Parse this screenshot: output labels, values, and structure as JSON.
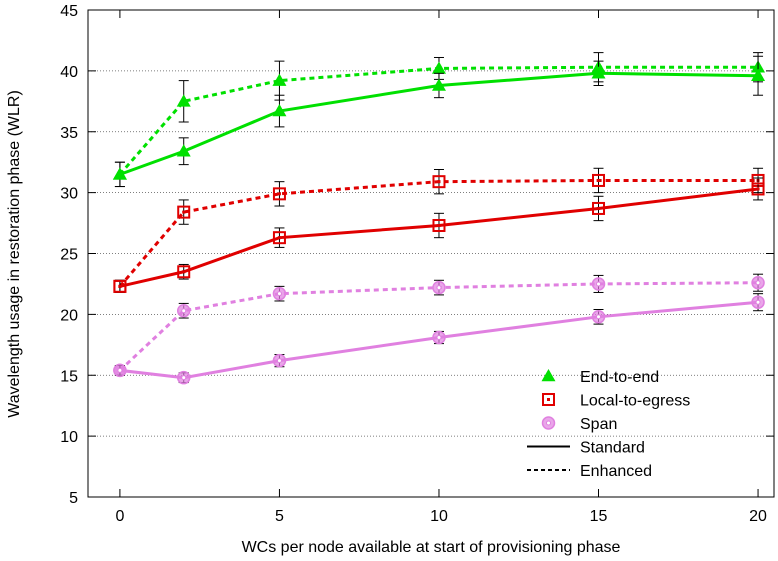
{
  "chart_data": {
    "type": "line",
    "title": "",
    "xlabel": "WCs per node available at start of provisioning phase",
    "ylabel": "Wavelength usage in restoration phase (WLR)",
    "xlim": [
      -1,
      20.5
    ],
    "ylim": [
      5,
      45
    ],
    "x_ticks": [
      0,
      5,
      10,
      15,
      20
    ],
    "y_ticks": [
      5,
      10,
      15,
      20,
      25,
      30,
      35,
      40,
      45
    ],
    "grid": "horizontal dotted",
    "legend_position": "bottom-right",
    "x": [
      0,
      2,
      5,
      10,
      15,
      20
    ],
    "groups": [
      {
        "name": "End-to-end",
        "color": "#00e000",
        "marker": "triangle",
        "standard": [
          31.5,
          33.4,
          36.7,
          38.8,
          39.8,
          39.6
        ],
        "standard_err": [
          1.0,
          1.1,
          1.3,
          1.0,
          1.0,
          1.6
        ],
        "enhanced": [
          31.5,
          37.5,
          39.2,
          40.2,
          40.3,
          40.3
        ],
        "enhanced_err": [
          1.0,
          1.7,
          1.6,
          0.9,
          1.2,
          1.2
        ]
      },
      {
        "name": "Local-to-egress",
        "color": "#e00000",
        "marker": "square",
        "standard": [
          22.3,
          23.5,
          26.3,
          27.3,
          28.7,
          30.3
        ],
        "standard_err": [
          0.5,
          0.6,
          0.8,
          1.0,
          1.0,
          0.9
        ],
        "enhanced": [
          22.3,
          28.4,
          29.9,
          30.9,
          31.0,
          31.0
        ],
        "enhanced_err": [
          0.5,
          1.0,
          1.0,
          1.0,
          1.0,
          1.0
        ]
      },
      {
        "name": "Span",
        "color": "#e080e0",
        "marker": "circle",
        "standard": [
          15.4,
          14.8,
          16.2,
          18.1,
          19.8,
          21.0
        ],
        "standard_err": [
          0.4,
          0.4,
          0.5,
          0.5,
          0.6,
          0.7
        ],
        "enhanced": [
          15.4,
          20.3,
          21.7,
          22.2,
          22.5,
          22.6
        ],
        "enhanced_err": [
          0.4,
          0.6,
          0.6,
          0.6,
          0.7,
          0.7
        ]
      }
    ],
    "legend": {
      "entries": [
        "End-to-end",
        "Local-to-egress",
        "Span"
      ],
      "styles": [
        "Standard",
        "Enhanced"
      ]
    }
  }
}
